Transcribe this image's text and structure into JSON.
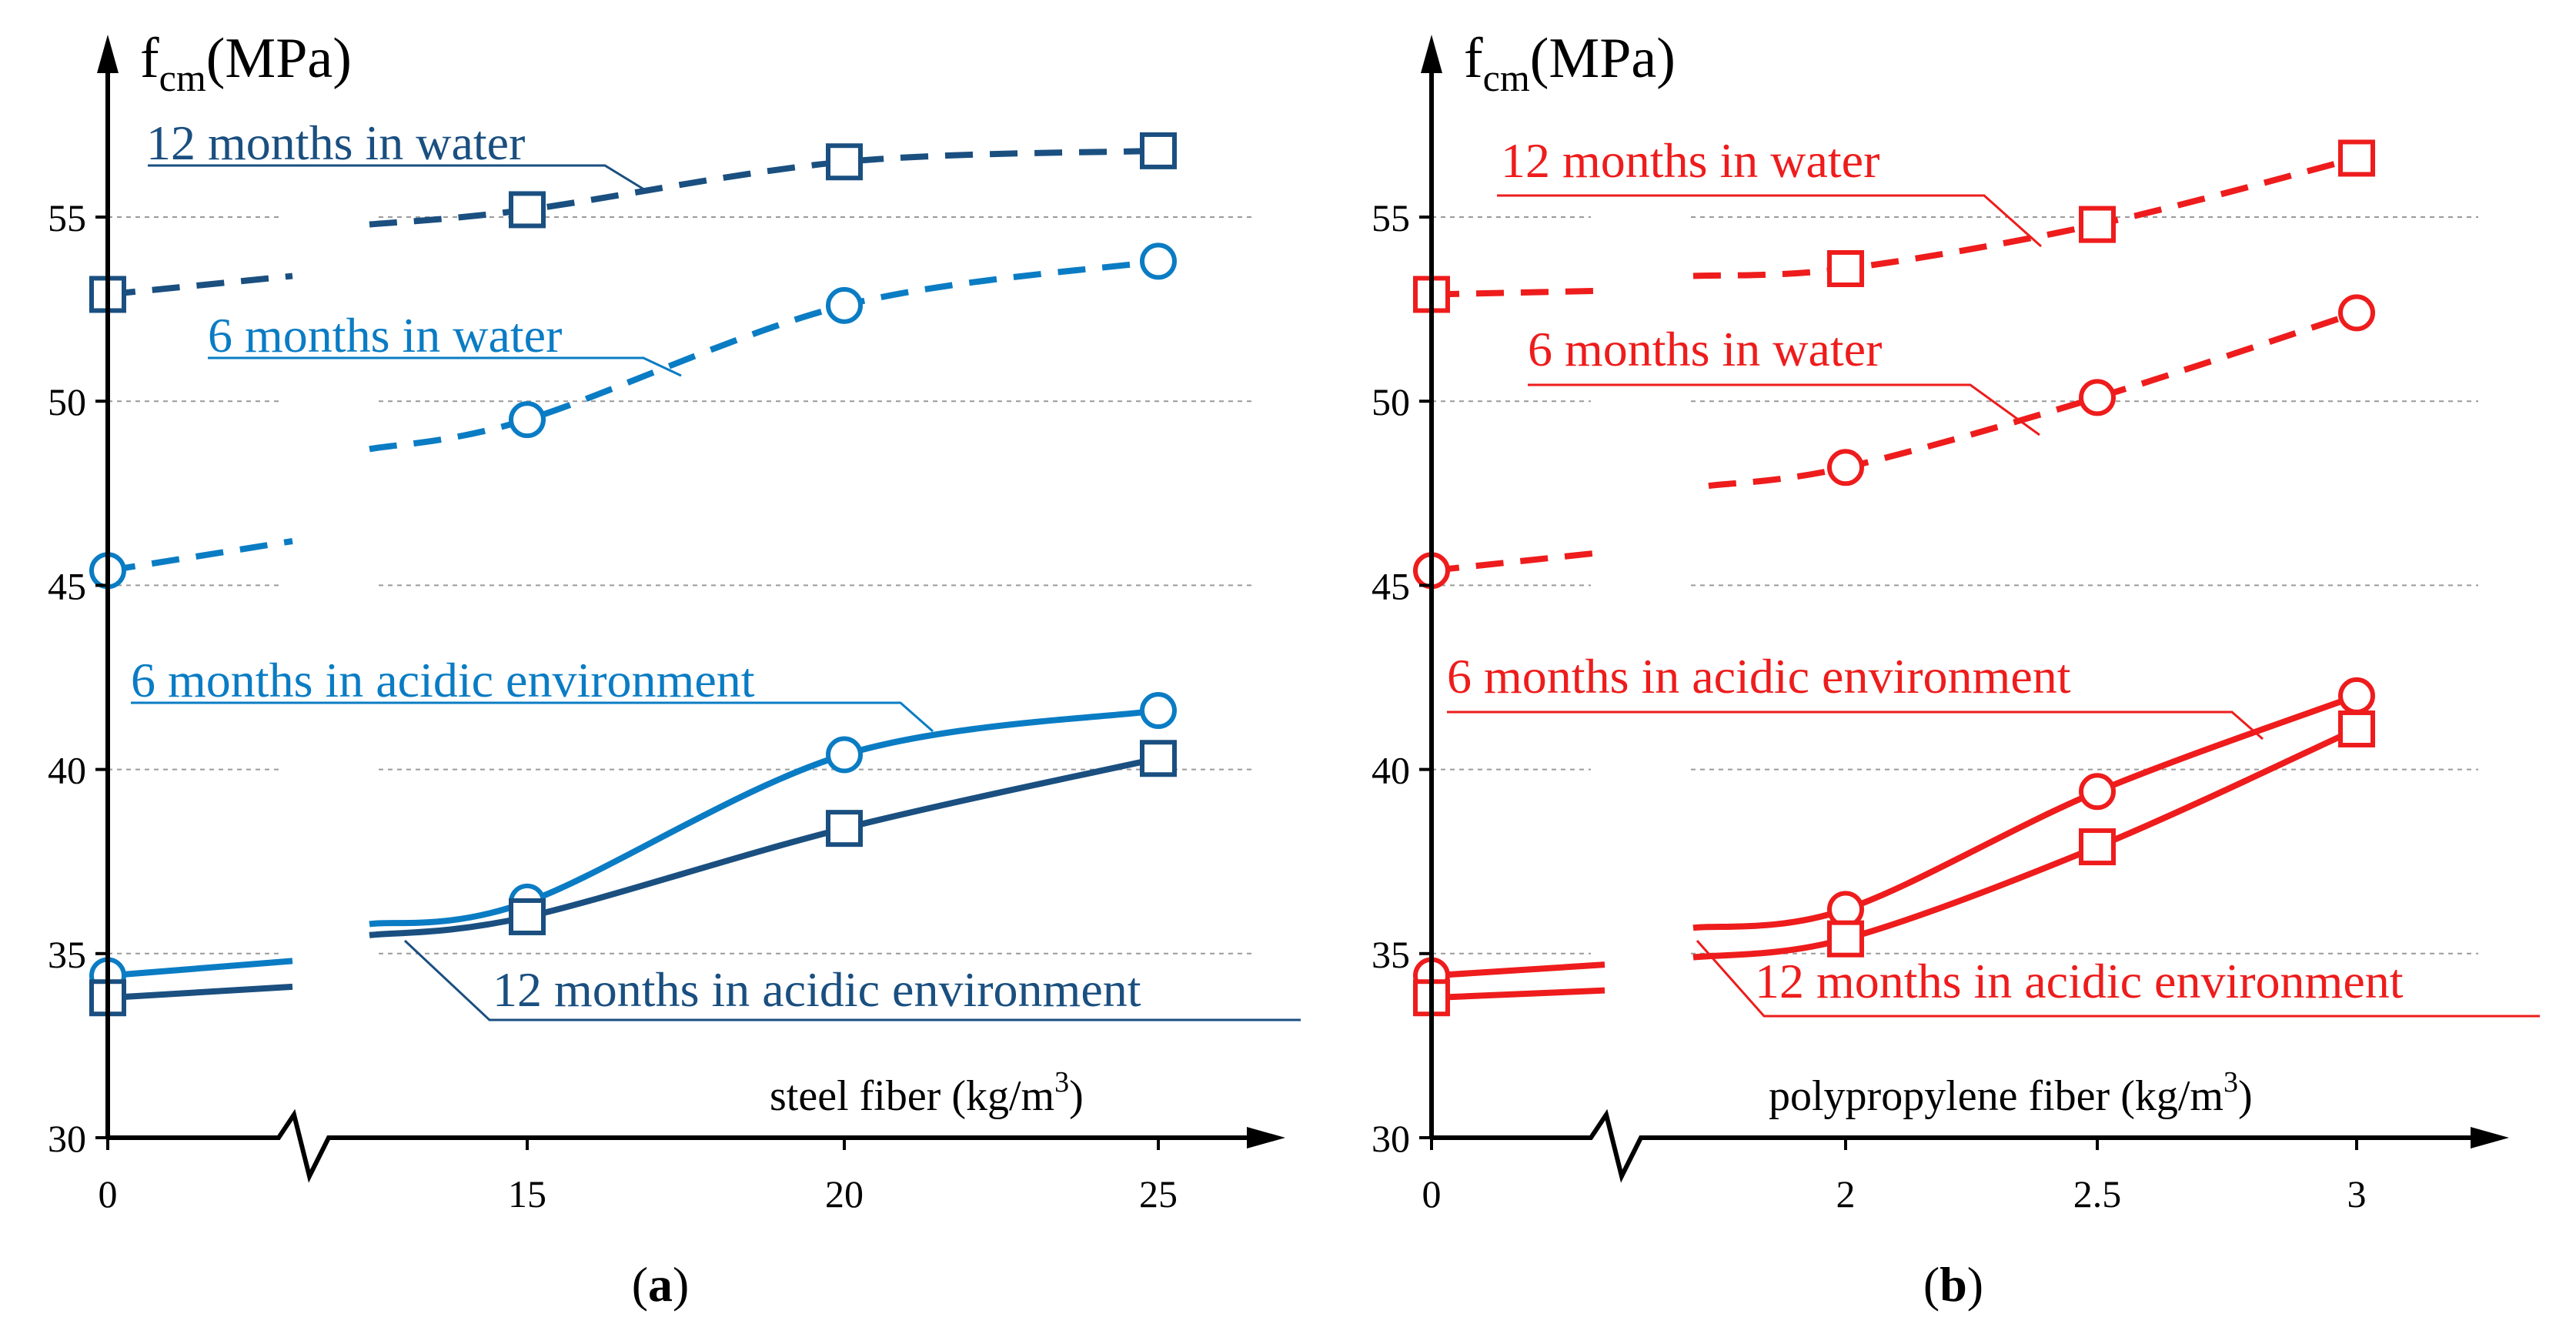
{
  "figure": {
    "panels": [
      {
        "panel_label": "a",
        "y_axis_label_main": "f",
        "y_axis_label_sub": "cm",
        "y_axis_label_unit": "(MPa)",
        "x_axis_label_main": "steel fiber  (kg/m",
        "x_axis_label_sup": "3",
        "x_axis_label_close": ")",
        "y_ticks": [
          "30",
          "35",
          "40",
          "45",
          "50",
          "55"
        ],
        "x_ticks": [
          "0",
          "15",
          "20",
          "25"
        ],
        "color_dark": "#1a4f80",
        "color_light": "#0a7cc4",
        "series_labels": {
          "w12": "12 months in water",
          "w6": "6 months in water",
          "a6": "6 months in acidic environment",
          "a12": "12 months in acidic environment"
        }
      },
      {
        "panel_label": "b",
        "y_axis_label_main": "f",
        "y_axis_label_sub": "cm",
        "y_axis_label_unit": "(MPa)",
        "x_axis_label_main": "polypropylene fiber  (kg/m",
        "x_axis_label_sup": "3",
        "x_axis_label_close": ")",
        "y_ticks": [
          "30",
          "35",
          "40",
          "45",
          "50",
          "55"
        ],
        "x_ticks": [
          "0",
          "2",
          "2.5",
          "3"
        ],
        "color_dark": "#ee1c1c",
        "color_light": "#ee1c1c",
        "series_labels": {
          "w12": "12 months in water",
          "w6": "6 months in water",
          "a6": "6 months in acidic environment",
          "a12": "12 months in acidic environment"
        }
      }
    ]
  },
  "chart_data": [
    {
      "type": "line",
      "title": "",
      "xlabel": "steel fiber (kg/m3)",
      "ylabel": "fcm(MPa)",
      "ylim": [
        30,
        58
      ],
      "x": [
        0,
        15,
        20,
        25
      ],
      "x_axis_break": true,
      "grid": "horizontal dashed",
      "series": [
        {
          "name": "12 months in water",
          "marker": "square",
          "line": "dashed",
          "color": "#1a4f80",
          "values": [
            52.9,
            55.2,
            56.5,
            56.8
          ]
        },
        {
          "name": "6 months in water",
          "marker": "circle",
          "line": "dashed",
          "color": "#0a7cc4",
          "values": [
            45.4,
            49.5,
            52.6,
            53.8
          ]
        },
        {
          "name": "6 months in acidic environment",
          "marker": "circle",
          "line": "solid",
          "color": "#0a7cc4",
          "values": [
            34.4,
            36.4,
            40.4,
            41.6
          ]
        },
        {
          "name": "12 months in acidic environment",
          "marker": "square",
          "line": "solid",
          "color": "#1a4f80",
          "values": [
            33.8,
            36.0,
            38.4,
            40.3
          ]
        }
      ]
    },
    {
      "type": "line",
      "title": "",
      "xlabel": "polypropylene fiber (kg/m3)",
      "ylabel": "fcm(MPa)",
      "ylim": [
        30,
        58
      ],
      "x": [
        0,
        2,
        2.5,
        3
      ],
      "x_axis_break": true,
      "grid": "horizontal dashed",
      "series": [
        {
          "name": "12 months in water",
          "marker": "square",
          "line": "dashed",
          "color": "#ee1c1c",
          "values": [
            52.9,
            53.6,
            54.8,
            56.6
          ]
        },
        {
          "name": "6 months in water",
          "marker": "circle",
          "line": "dashed",
          "color": "#ee1c1c",
          "values": [
            45.4,
            48.2,
            50.1,
            52.4
          ]
        },
        {
          "name": "6 months in acidic environment",
          "marker": "circle",
          "line": "solid",
          "color": "#ee1c1c",
          "values": [
            34.4,
            36.2,
            39.4,
            42.0
          ]
        },
        {
          "name": "12 months in acidic environment",
          "marker": "square",
          "line": "solid",
          "color": "#ee1c1c",
          "values": [
            33.8,
            35.4,
            37.9,
            41.1
          ]
        }
      ]
    }
  ]
}
